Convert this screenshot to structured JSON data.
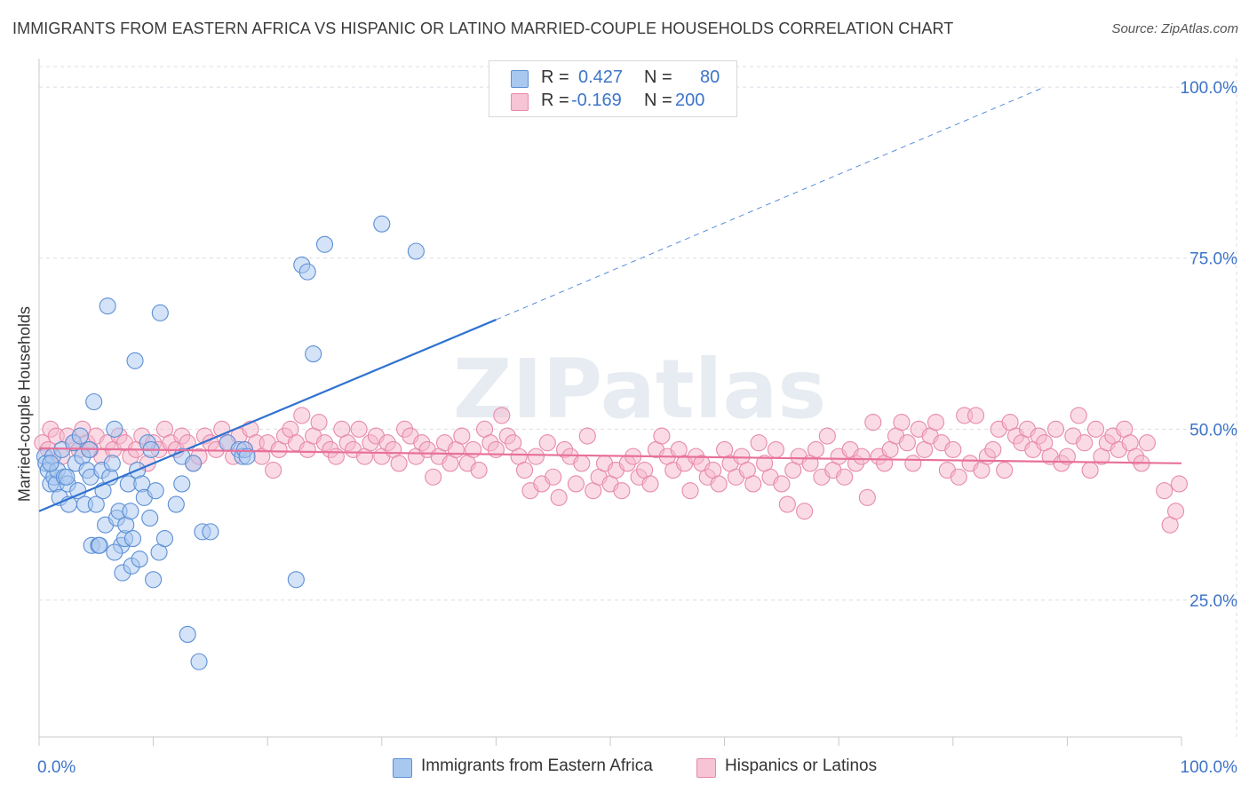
{
  "title": "IMMIGRANTS FROM EASTERN AFRICA VS HISPANIC OR LATINO MARRIED-COUPLE HOUSEHOLDS CORRELATION CHART",
  "source": "Source: ZipAtlas.com",
  "watermark": "ZIPatlas",
  "colors": {
    "blue_fill": "#a9c8ef",
    "blue_stroke": "#5b8fd6",
    "blue_line": "#2f72d0",
    "pink_fill": "#f6b7cb",
    "pink_stroke": "#e78aa9",
    "pink_line": "#e8709a",
    "axis_text": "#3d74c9",
    "grid": "#d9dee6"
  },
  "legend": {
    "blue": {
      "r_label": "R =",
      "r_value": "0.427",
      "n_label": "N =",
      "n_value": "80"
    },
    "pink": {
      "r_label": "R =",
      "r_value": "-0.169",
      "n_label": "N =",
      "n_value": "200"
    }
  },
  "bottom_legend": [
    "Immigrants from Eastern Africa",
    "Hispanics or Latinos"
  ],
  "chart_data": {
    "type": "scatter",
    "xlabel": "",
    "ylabel": "Married-couple Households",
    "xlim": [
      0,
      100
    ],
    "ylim": [
      5,
      103
    ],
    "x_tick_labels": [
      "0.0%",
      "100.0%"
    ],
    "y_tick_labels": [
      "25.0%",
      "50.0%",
      "75.0%",
      "100.0%"
    ],
    "y_ticks": [
      25,
      50,
      75,
      100
    ],
    "series": [
      {
        "name": "Immigrants from Eastern Africa",
        "color": "blue",
        "r": 0.427,
        "n": 80,
        "trend": {
          "x0": 0,
          "y0": 38.0,
          "x1": 40,
          "y1": 66.0,
          "dash_to_x": 88,
          "dash_to_y": 100
        },
        "points": [
          [
            0.5,
            46
          ],
          [
            0.6,
            45
          ],
          [
            0.8,
            44
          ],
          [
            1.0,
            42
          ],
          [
            1.2,
            46
          ],
          [
            1.3,
            43
          ],
          [
            1.5,
            42
          ],
          [
            1.6,
            44
          ],
          [
            1.8,
            40
          ],
          [
            2.0,
            47
          ],
          [
            2.2,
            43
          ],
          [
            2.5,
            42
          ],
          [
            2.6,
            39
          ],
          [
            3.0,
            48
          ],
          [
            3.2,
            45
          ],
          [
            3.4,
            41
          ],
          [
            3.6,
            49
          ],
          [
            3.8,
            46
          ],
          [
            4.0,
            39
          ],
          [
            4.2,
            44
          ],
          [
            4.4,
            47
          ],
          [
            4.5,
            43
          ],
          [
            4.6,
            33
          ],
          [
            4.8,
            54
          ],
          [
            5.0,
            39
          ],
          [
            5.2,
            33
          ],
          [
            5.3,
            33
          ],
          [
            5.5,
            44
          ],
          [
            5.6,
            41
          ],
          [
            5.8,
            36
          ],
          [
            6.0,
            68
          ],
          [
            6.2,
            43
          ],
          [
            6.4,
            45
          ],
          [
            6.6,
            50
          ],
          [
            6.8,
            37
          ],
          [
            7.0,
            38
          ],
          [
            7.2,
            33
          ],
          [
            7.3,
            29
          ],
          [
            7.5,
            34
          ],
          [
            7.6,
            36
          ],
          [
            7.8,
            42
          ],
          [
            8.0,
            38
          ],
          [
            8.1,
            30
          ],
          [
            8.2,
            34
          ],
          [
            8.4,
            60
          ],
          [
            8.6,
            44
          ],
          [
            8.8,
            31
          ],
          [
            9.0,
            42
          ],
          [
            9.2,
            40
          ],
          [
            9.5,
            48
          ],
          [
            9.7,
            37
          ],
          [
            9.8,
            47
          ],
          [
            10.0,
            28
          ],
          [
            10.2,
            41
          ],
          [
            10.5,
            32
          ],
          [
            10.6,
            67
          ],
          [
            11.0,
            34
          ],
          [
            12.0,
            39
          ],
          [
            12.5,
            42
          ],
          [
            12.5,
            46
          ],
          [
            13.0,
            20
          ],
          [
            13.5,
            45
          ],
          [
            14.0,
            16
          ],
          [
            14.3,
            35
          ],
          [
            15.0,
            35
          ],
          [
            16.5,
            48
          ],
          [
            17.5,
            47
          ],
          [
            17.8,
            46
          ],
          [
            18.0,
            47
          ],
          [
            18.2,
            46
          ],
          [
            22.5,
            28
          ],
          [
            23.0,
            74
          ],
          [
            23.5,
            73
          ],
          [
            24.0,
            61
          ],
          [
            25.0,
            77
          ],
          [
            30.0,
            80
          ],
          [
            33.0,
            76
          ],
          [
            1.0,
            45
          ],
          [
            2.4,
            43
          ],
          [
            6.6,
            32
          ]
        ]
      },
      {
        "name": "Hispanics or Latinos",
        "color": "pink",
        "r": -0.169,
        "n": 200,
        "trend": {
          "x0": 0,
          "y0": 47.2,
          "x1": 100,
          "y1": 45.0
        },
        "points": [
          [
            0.3,
            48
          ],
          [
            0.8,
            47
          ],
          [
            1.0,
            50
          ],
          [
            1.5,
            49
          ],
          [
            2.0,
            46
          ],
          [
            2.5,
            49
          ],
          [
            3.0,
            48
          ],
          [
            3.5,
            47
          ],
          [
            3.8,
            50
          ],
          [
            4.2,
            48
          ],
          [
            4.5,
            47
          ],
          [
            5.0,
            49
          ],
          [
            5.5,
            46
          ],
          [
            6.0,
            48
          ],
          [
            6.5,
            47
          ],
          [
            7.0,
            49
          ],
          [
            7.5,
            48
          ],
          [
            8.0,
            46
          ],
          [
            8.5,
            47
          ],
          [
            9.0,
            49
          ],
          [
            9.5,
            45
          ],
          [
            10.0,
            48
          ],
          [
            10.5,
            47
          ],
          [
            11.0,
            50
          ],
          [
            11.5,
            48
          ],
          [
            12.0,
            47
          ],
          [
            12.5,
            49
          ],
          [
            13.0,
            48
          ],
          [
            13.5,
            45
          ],
          [
            14.0,
            46
          ],
          [
            14.5,
            49
          ],
          [
            15.0,
            48
          ],
          [
            15.5,
            47
          ],
          [
            16.0,
            50
          ],
          [
            16.5,
            48
          ],
          [
            17.0,
            46
          ],
          [
            17.5,
            49
          ],
          [
            18.0,
            47
          ],
          [
            18.5,
            50
          ],
          [
            19.0,
            48
          ],
          [
            19.5,
            46
          ],
          [
            20.0,
            48
          ],
          [
            20.5,
            44
          ],
          [
            21.0,
            47
          ],
          [
            21.5,
            49
          ],
          [
            22.0,
            50
          ],
          [
            22.5,
            48
          ],
          [
            23.0,
            52
          ],
          [
            23.5,
            47
          ],
          [
            24.0,
            49
          ],
          [
            24.5,
            51
          ],
          [
            25.0,
            48
          ],
          [
            25.5,
            47
          ],
          [
            26.0,
            46
          ],
          [
            26.5,
            50
          ],
          [
            27.0,
            48
          ],
          [
            27.5,
            47
          ],
          [
            28.0,
            50
          ],
          [
            28.5,
            46
          ],
          [
            29.0,
            48
          ],
          [
            29.5,
            49
          ],
          [
            30.0,
            46
          ],
          [
            30.5,
            48
          ],
          [
            31.0,
            47
          ],
          [
            31.5,
            45
          ],
          [
            32.0,
            50
          ],
          [
            32.5,
            49
          ],
          [
            33.0,
            46
          ],
          [
            33.5,
            48
          ],
          [
            34.0,
            47
          ],
          [
            34.5,
            43
          ],
          [
            35.0,
            46
          ],
          [
            35.5,
            48
          ],
          [
            36.0,
            45
          ],
          [
            36.5,
            47
          ],
          [
            37.0,
            49
          ],
          [
            37.5,
            45
          ],
          [
            38.0,
            47
          ],
          [
            38.5,
            44
          ],
          [
            39.0,
            50
          ],
          [
            39.5,
            48
          ],
          [
            40.0,
            47
          ],
          [
            40.5,
            52
          ],
          [
            41.0,
            49
          ],
          [
            41.5,
            48
          ],
          [
            42.0,
            46
          ],
          [
            42.5,
            44
          ],
          [
            43.0,
            41
          ],
          [
            43.5,
            46
          ],
          [
            44.0,
            42
          ],
          [
            44.5,
            48
          ],
          [
            45.0,
            43
          ],
          [
            45.5,
            40
          ],
          [
            46.0,
            47
          ],
          [
            46.5,
            46
          ],
          [
            47.0,
            42
          ],
          [
            47.5,
            45
          ],
          [
            48.0,
            49
          ],
          [
            48.5,
            41
          ],
          [
            49.0,
            43
          ],
          [
            49.5,
            45
          ],
          [
            50.0,
            42
          ],
          [
            50.5,
            44
          ],
          [
            51.0,
            41
          ],
          [
            51.5,
            45
          ],
          [
            52.0,
            46
          ],
          [
            52.5,
            43
          ],
          [
            53.0,
            44
          ],
          [
            53.5,
            42
          ],
          [
            54.0,
            47
          ],
          [
            54.5,
            49
          ],
          [
            55.0,
            46
          ],
          [
            55.5,
            44
          ],
          [
            56.0,
            47
          ],
          [
            56.5,
            45
          ],
          [
            57.0,
            41
          ],
          [
            57.5,
            46
          ],
          [
            58.0,
            45
          ],
          [
            58.5,
            43
          ],
          [
            59.0,
            44
          ],
          [
            59.5,
            42
          ],
          [
            60.0,
            47
          ],
          [
            60.5,
            45
          ],
          [
            61.0,
            43
          ],
          [
            61.5,
            46
          ],
          [
            62.0,
            44
          ],
          [
            62.5,
            42
          ],
          [
            63.0,
            48
          ],
          [
            63.5,
            45
          ],
          [
            64.0,
            43
          ],
          [
            64.5,
            47
          ],
          [
            65.0,
            42
          ],
          [
            65.5,
            39
          ],
          [
            66.0,
            44
          ],
          [
            66.5,
            46
          ],
          [
            67.0,
            38
          ],
          [
            67.5,
            45
          ],
          [
            68.0,
            47
          ],
          [
            68.5,
            43
          ],
          [
            69.0,
            49
          ],
          [
            69.5,
            44
          ],
          [
            70.0,
            46
          ],
          [
            70.5,
            43
          ],
          [
            71.0,
            47
          ],
          [
            71.5,
            45
          ],
          [
            72.0,
            46
          ],
          [
            72.5,
            40
          ],
          [
            73.0,
            51
          ],
          [
            73.5,
            46
          ],
          [
            74.0,
            45
          ],
          [
            74.5,
            47
          ],
          [
            75.0,
            49
          ],
          [
            75.5,
            51
          ],
          [
            76.0,
            48
          ],
          [
            76.5,
            45
          ],
          [
            77.0,
            50
          ],
          [
            77.5,
            47
          ],
          [
            78.0,
            49
          ],
          [
            78.5,
            51
          ],
          [
            79.0,
            48
          ],
          [
            79.5,
            44
          ],
          [
            80.0,
            47
          ],
          [
            80.5,
            43
          ],
          [
            81.0,
            52
          ],
          [
            81.5,
            45
          ],
          [
            82.0,
            52
          ],
          [
            82.5,
            44
          ],
          [
            83.0,
            46
          ],
          [
            83.5,
            47
          ],
          [
            84.0,
            50
          ],
          [
            84.5,
            44
          ],
          [
            85.0,
            51
          ],
          [
            85.5,
            49
          ],
          [
            86.0,
            48
          ],
          [
            86.5,
            50
          ],
          [
            87.0,
            47
          ],
          [
            87.5,
            49
          ],
          [
            88.0,
            48
          ],
          [
            88.5,
            46
          ],
          [
            89.0,
            50
          ],
          [
            89.5,
            45
          ],
          [
            90.0,
            46
          ],
          [
            90.5,
            49
          ],
          [
            91.0,
            52
          ],
          [
            91.5,
            48
          ],
          [
            92.0,
            44
          ],
          [
            92.5,
            50
          ],
          [
            93.0,
            46
          ],
          [
            93.5,
            48
          ],
          [
            94.0,
            49
          ],
          [
            94.5,
            47
          ],
          [
            95.0,
            50
          ],
          [
            95.5,
            48
          ],
          [
            96.0,
            46
          ],
          [
            96.5,
            45
          ],
          [
            97.0,
            48
          ],
          [
            98.5,
            41
          ],
          [
            99.0,
            36
          ],
          [
            99.5,
            38
          ],
          [
            99.8,
            42
          ]
        ]
      }
    ]
  }
}
